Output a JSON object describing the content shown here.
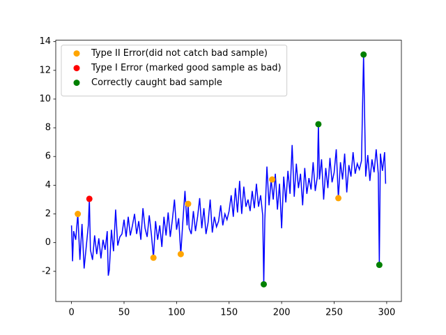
{
  "chart_data": {
    "type": "line",
    "xlim": [
      -15,
      314
    ],
    "ylim": [
      -4.1,
      14.1
    ],
    "xticks": [
      0,
      50,
      100,
      150,
      200,
      250,
      300
    ],
    "yticks": [
      -2,
      0,
      2,
      4,
      6,
      8,
      10,
      12,
      14
    ],
    "legend": "upper left",
    "series": [
      {
        "type": "line",
        "color": "#0000ff",
        "x": [
          0,
          1,
          2,
          4,
          6,
          8,
          10,
          12,
          14,
          16,
          17,
          18,
          20,
          22,
          24,
          26,
          28,
          30,
          32,
          34,
          35,
          36,
          38,
          40,
          42,
          44,
          46,
          48,
          50,
          52,
          54,
          56,
          58,
          60,
          62,
          64,
          66,
          68,
          70,
          72,
          74,
          76,
          78,
          80,
          82,
          84,
          86,
          88,
          90,
          92,
          94,
          96,
          98,
          100,
          102,
          104,
          106,
          108,
          110,
          111,
          112,
          114,
          116,
          118,
          120,
          122,
          124,
          126,
          128,
          130,
          132,
          134,
          136,
          138,
          140,
          142,
          144,
          146,
          148,
          150,
          152,
          154,
          156,
          158,
          160,
          162,
          164,
          166,
          168,
          170,
          172,
          174,
          176,
          178,
          180,
          182,
          183,
          184,
          186,
          188,
          190,
          192,
          194,
          196,
          198,
          200,
          202,
          204,
          206,
          208,
          210,
          212,
          214,
          216,
          218,
          220,
          222,
          224,
          226,
          228,
          230,
          232,
          234,
          235,
          236,
          238,
          240,
          242,
          244,
          246,
          248,
          250,
          252,
          254,
          256,
          258,
          260,
          262,
          264,
          266,
          268,
          270,
          272,
          274,
          276,
          278,
          280,
          282,
          284,
          286,
          288,
          290,
          292,
          293,
          294,
          296,
          298,
          299
        ],
        "values": [
          1.2,
          -1.3,
          0.8,
          0.2,
          2.0,
          -1.2,
          1.3,
          -1.8,
          -0.3,
          1.2,
          3.05,
          -0.5,
          -1.2,
          0.5,
          -0.8,
          0.3,
          -1.1,
          0.2,
          -0.5,
          0.8,
          -2.3,
          -1.9,
          0.9,
          -0.6,
          2.3,
          -0.2,
          0.4,
          0.6,
          1.6,
          0.4,
          1.8,
          0.5,
          1.2,
          2.0,
          0.6,
          1.5,
          0.2,
          2.4,
          1.0,
          0.4,
          1.9,
          0.6,
          -1.05,
          1.5,
          0.2,
          1.2,
          -0.3,
          1.8,
          0.5,
          2.1,
          0.4,
          1.6,
          3.0,
          0.9,
          1.7,
          -0.8,
          1.5,
          3.6,
          1.2,
          2.7,
          1.0,
          0.6,
          2.2,
          0.8,
          1.8,
          3.1,
          1.0,
          2.4,
          0.6,
          1.4,
          3.0,
          0.7,
          1.8,
          1.1,
          1.5,
          2.6,
          1.2,
          2.0,
          1.6,
          2.2,
          3.3,
          1.8,
          3.8,
          2.1,
          4.3,
          2.0,
          3.9,
          2.5,
          3.0,
          2.2,
          3.6,
          2.4,
          4.1,
          2.5,
          3.3,
          1.9,
          -2.9,
          1.6,
          5.3,
          2.6,
          4.4,
          3.0,
          4.8,
          2.3,
          4.1,
          1.0,
          4.6,
          2.8,
          5.0,
          3.4,
          6.8,
          3.2,
          5.5,
          3.8,
          4.8,
          2.6,
          5.2,
          3.4,
          4.5,
          3.7,
          5.6,
          3.6,
          4.6,
          8.25,
          4.4,
          5.8,
          3.0,
          5.2,
          3.8,
          5.9,
          4.2,
          4.9,
          6.5,
          3.1,
          5.6,
          4.4,
          6.2,
          3.5,
          5.4,
          4.6,
          6.3,
          4.8,
          5.5,
          5.1,
          5.7,
          13.1,
          4.6,
          6.1,
          4.3,
          5.8,
          4.9,
          6.5,
          4.8,
          -1.55,
          6.2,
          5.0,
          6.3,
          4.1
        ]
      },
      {
        "type": "scatter",
        "name": "Type II Error(did not catch bad sample)",
        "color": "#ffa500",
        "x": [
          6,
          78,
          104,
          111,
          191,
          254
        ],
        "values": [
          2.0,
          -1.05,
          -0.8,
          2.7,
          4.4,
          3.1
        ]
      },
      {
        "type": "scatter",
        "name": "Type I Error (marked good sample as bad)",
        "color": "#ff0000",
        "x": [
          17
        ],
        "values": [
          3.05
        ]
      },
      {
        "type": "scatter",
        "name": "Correctly caught bad sample",
        "color": "#008000",
        "x": [
          183,
          235,
          278,
          293
        ],
        "values": [
          -2.9,
          8.25,
          13.1,
          -1.55
        ]
      }
    ]
  }
}
